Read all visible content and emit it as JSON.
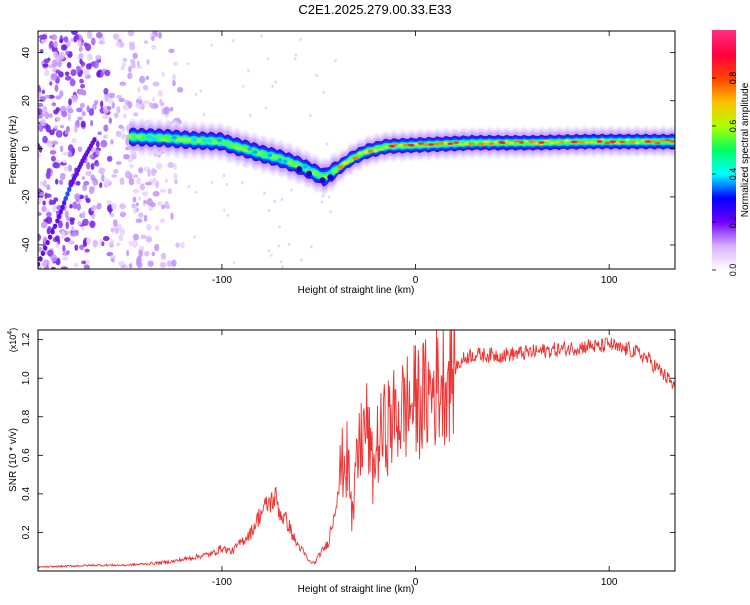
{
  "title": "C2E1.2025.279.00.33.E33",
  "chart_data": [
    {
      "type": "heatmap",
      "xlabel": "Height of straight line (km)",
      "ylabel": "Frequency (Hz)",
      "xlim": [
        -195,
        134
      ],
      "ylim": [
        -50,
        49
      ],
      "xticks": [
        -100,
        0,
        100
      ],
      "yticks": [
        -40,
        -20,
        0,
        20,
        40
      ],
      "colorbar": {
        "label": "Normalized spectral amplitude",
        "range": [
          0,
          1
        ],
        "ticks": [
          "0.0",
          "0.2",
          "0.4",
          "0.6",
          "0.8"
        ],
        "colors": [
          "#ffffff",
          "#d8b0ff",
          "#7000ff",
          "#0000ff",
          "#00ffff",
          "#00ff60",
          "#b0ff00",
          "#ffc000",
          "#ff4000",
          "#ff0040",
          "#ff3080"
        ]
      },
      "ridge": {
        "description_points": [
          [
            -148,
            5
          ],
          [
            -130,
            4.5
          ],
          [
            -115,
            3.5
          ],
          [
            -100,
            3
          ],
          [
            -95,
            1.5
          ],
          [
            -88,
            0
          ],
          [
            -80,
            -2
          ],
          [
            -70,
            -4
          ],
          [
            -60,
            -7
          ],
          [
            -52,
            -10
          ],
          [
            -47,
            -12
          ],
          [
            -40,
            -8
          ],
          [
            -33,
            -4
          ],
          [
            -25,
            -1
          ],
          [
            -15,
            1
          ],
          [
            0,
            1.5
          ],
          [
            15,
            2
          ],
          [
            30,
            2.5
          ],
          [
            60,
            2.5
          ],
          [
            90,
            3
          ],
          [
            100,
            3
          ],
          [
            134,
            3
          ]
        ]
      },
      "low_altitude_line": [
        [
          -195,
          -48
        ],
        [
          -185,
          -30
        ],
        [
          -178,
          -15
        ],
        [
          -172,
          -5
        ],
        [
          -165,
          5
        ]
      ]
    },
    {
      "type": "line",
      "xlabel": "Height of straight line (km)",
      "ylabel": "SNR (10 * v/v)",
      "multiplier_label": "(x10",
      "multiplier_exp": "4",
      "multiplier_close": ")",
      "xlim": [
        -195,
        134
      ],
      "ylim": [
        0,
        1.25
      ],
      "xticks": [
        -100,
        0,
        100
      ],
      "yticks": [
        0.2,
        0.4,
        0.6,
        0.8,
        1.0,
        1.2
      ],
      "ytick_labels": [
        "0.2",
        "0.4",
        "0.6",
        "0.8",
        "1.0",
        "1.2"
      ],
      "color": "#ee3333",
      "series": [
        {
          "name": "SNR",
          "x": [
            -195,
            -180,
            -165,
            -150,
            -135,
            -125,
            -115,
            -105,
            -100,
            -95,
            -90,
            -85,
            -80,
            -76,
            -72,
            -70,
            -66,
            -62,
            -58,
            -55,
            -52,
            -50,
            -47,
            -45,
            -42,
            -40,
            -38,
            -35,
            -33,
            -30,
            -28,
            -25,
            -22,
            -20,
            -15,
            -10,
            -5,
            0,
            5,
            10,
            15,
            20,
            25,
            28,
            35,
            45,
            55,
            65,
            75,
            85,
            90,
            95,
            100,
            105,
            110,
            115,
            120,
            125,
            130,
            134
          ],
          "y": [
            0.02,
            0.025,
            0.03,
            0.03,
            0.04,
            0.05,
            0.07,
            0.09,
            0.12,
            0.1,
            0.15,
            0.2,
            0.3,
            0.35,
            0.38,
            0.3,
            0.25,
            0.15,
            0.1,
            0.05,
            0.04,
            0.08,
            0.12,
            0.15,
            0.3,
            0.45,
            0.55,
            0.6,
            0.3,
            0.55,
            0.7,
            0.75,
            0.5,
            0.65,
            0.75,
            0.8,
            0.85,
            0.88,
            0.9,
            0.95,
            1.0,
            1.05,
            1.1,
            1.12,
            1.12,
            1.12,
            1.13,
            1.14,
            1.15,
            1.16,
            1.17,
            1.16,
            1.18,
            1.15,
            1.15,
            1.13,
            1.1,
            1.05,
            1.0,
            0.95
          ]
        }
      ]
    }
  ]
}
